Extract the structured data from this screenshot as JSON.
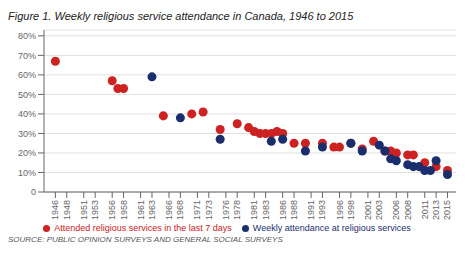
{
  "chart_data": {
    "type": "scatter",
    "title": "Figure 1. Weekly religious service attendance in Canada, 1946 to 2015",
    "annotations": [
      "SOURCE: PUBLIC OPINION SURVEYS AND GENERAL SOCIAL SURVEYS"
    ],
    "series": [
      {
        "name": "Attended religious services in the last 7 days",
        "color": "#cc2222",
        "x": [
          1946,
          1956,
          1957,
          1958,
          1965,
          1970,
          1972,
          1975,
          1978,
          1980,
          1981,
          1982,
          1983,
          1984,
          1985,
          1986,
          1988,
          1990,
          1993,
          1995,
          1996,
          1998,
          2000,
          2002,
          2004,
          2005,
          2006,
          2008,
          2009,
          2011,
          2013,
          2015
        ],
        "values": [
          67,
          57,
          53,
          53,
          39,
          40,
          41,
          32,
          35,
          33,
          31,
          30,
          30,
          30,
          31,
          30,
          25,
          25,
          25,
          23,
          23,
          25,
          22,
          26,
          21,
          21,
          20,
          19,
          19,
          15,
          13,
          11
        ]
      },
      {
        "name": "Weekly attendance at religious services",
        "color": "#1a2e6e",
        "x": [
          1963,
          1968,
          1975,
          1984,
          1986,
          1990,
          1993,
          1998,
          2000,
          2003,
          2004,
          2005,
          2006,
          2008,
          2009,
          2010,
          2011,
          2012,
          2013,
          2015
        ],
        "values": [
          59,
          38,
          27,
          26,
          27,
          21,
          23,
          25,
          21,
          24,
          21,
          17,
          16,
          14,
          13,
          13,
          11,
          11,
          16,
          9
        ]
      }
    ],
    "xlim": [
      1944,
      2016.5
    ],
    "ylim": [
      0,
      83
    ],
    "xticks": [
      1946,
      1948,
      1951,
      1953,
      1956,
      1958,
      1961,
      1963,
      1966,
      1968,
      1971,
      1973,
      1976,
      1978,
      1981,
      1983,
      1986,
      1988,
      1991,
      1993,
      1996,
      1998,
      2001,
      2003,
      2006,
      2008,
      2011,
      2013,
      2015
    ],
    "yticks": [
      0,
      {
        "value": 10,
        "label": "10%"
      },
      {
        "value": 20,
        "label": "20%"
      },
      {
        "value": 30,
        "label": "30%"
      },
      {
        "value": 40,
        "label": "40%"
      },
      {
        "value": 50,
        "label": "50%"
      },
      {
        "value": 60,
        "label": "60%"
      },
      {
        "value": 70,
        "label": "70%"
      },
      {
        "value": 80,
        "label": "80%"
      }
    ],
    "grid": true,
    "legend": "bottom"
  }
}
